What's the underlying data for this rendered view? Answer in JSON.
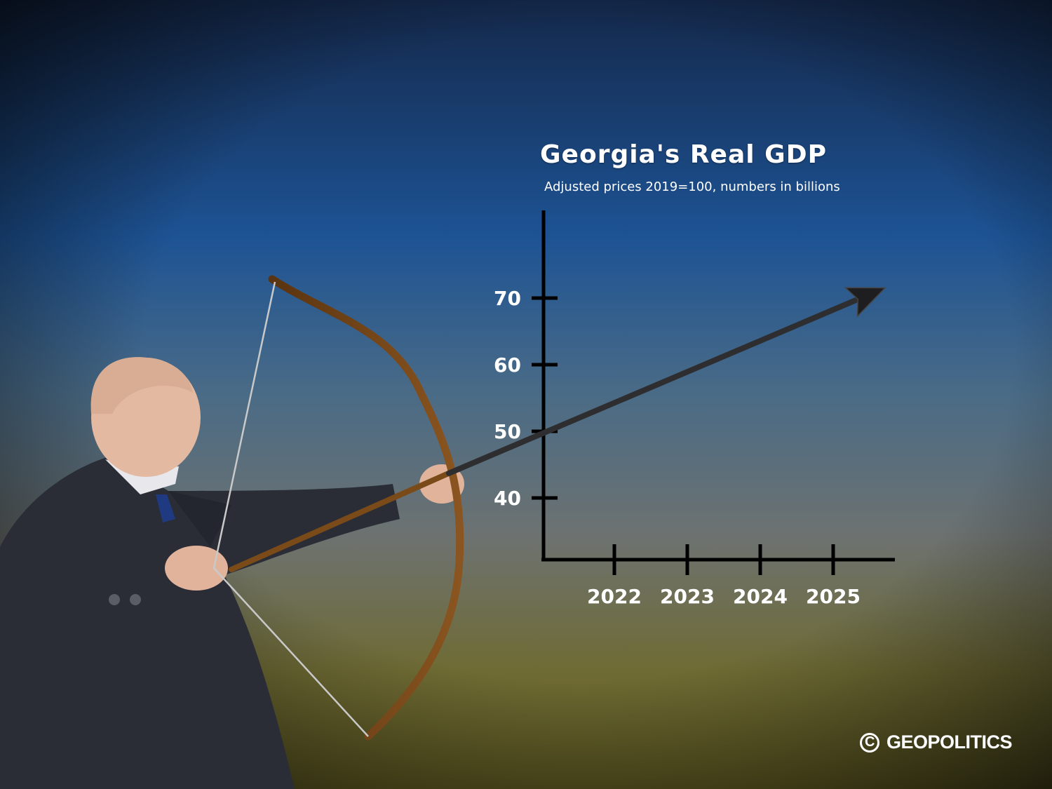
{
  "chart_data": {
    "type": "line",
    "title": "Georgia's Real GDP",
    "subtitle": "Adjusted prices 2019=100, numbers in billions",
    "x": [
      "2022",
      "2023",
      "2024",
      "2025"
    ],
    "y_ticks": [
      40,
      50,
      60,
      70
    ],
    "ylim": [
      30,
      80
    ],
    "trend_start_y": 50,
    "trend_end_y": 71,
    "grid": false
  },
  "brand": {
    "copyright_symbol": "C",
    "name": "GEOPOLITICS"
  },
  "colors": {
    "sky_blue": "#1e5a9c",
    "olive": "#6e6a2c",
    "axis": "#000000",
    "text": "#ffffff"
  }
}
